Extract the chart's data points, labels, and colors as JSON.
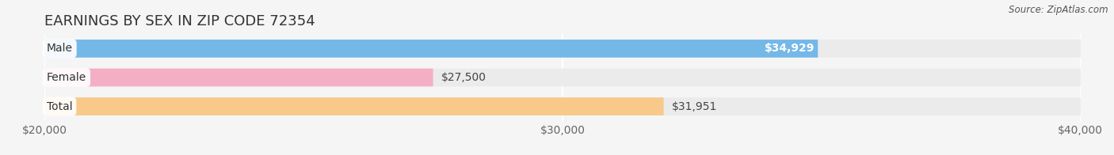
{
  "title": "EARNINGS BY SEX IN ZIP CODE 72354",
  "source": "Source: ZipAtlas.com",
  "categories": [
    "Male",
    "Female",
    "Total"
  ],
  "values": [
    34929,
    27500,
    31951
  ],
  "bar_colors": [
    "#74b8e8",
    "#f5afc5",
    "#f8c98a"
  ],
  "bar_labels": [
    "$34,929",
    "$27,500",
    "$31,951"
  ],
  "label_inside": [
    true,
    false,
    false
  ],
  "xlim": [
    20000,
    40000
  ],
  "xticks": [
    20000,
    30000,
    40000
  ],
  "xtick_labels": [
    "$20,000",
    "$30,000",
    "$40,000"
  ],
  "background_color": "#f5f5f5",
  "bar_background_color": "#ebebeb",
  "title_fontsize": 13,
  "tick_fontsize": 10,
  "label_fontsize": 10,
  "bar_height": 0.62
}
